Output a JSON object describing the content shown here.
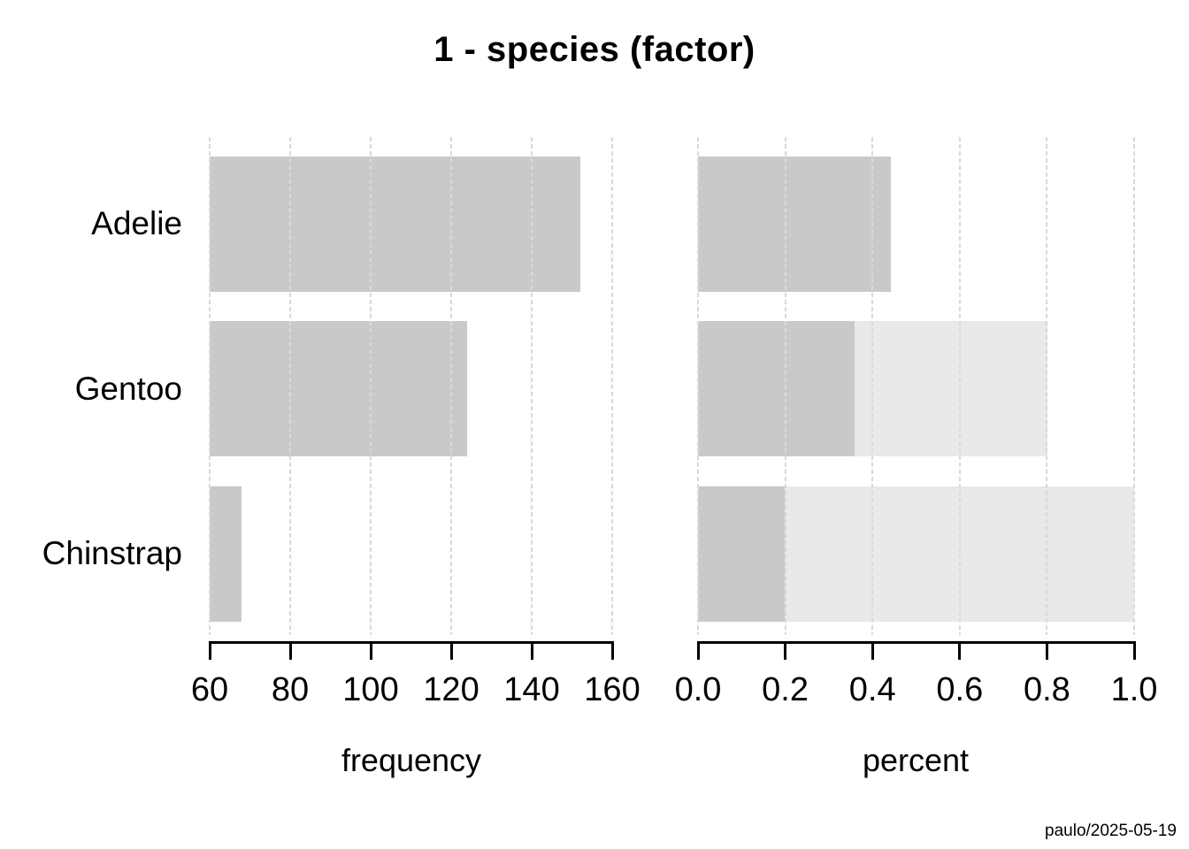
{
  "title": "1 - species (factor)",
  "footer": "paulo/2025-05-19",
  "colors": {
    "bar_dark": "#c9c9c9",
    "bar_light": "#e9e9e9",
    "grid": "#d9d9d9",
    "axis": "#000000",
    "text": "#000000",
    "background": "#ffffff"
  },
  "chart_data": [
    {
      "type": "bar",
      "orientation": "horizontal",
      "panel": "frequency",
      "xlabel": "frequency",
      "categories": [
        "Adelie",
        "Gentoo",
        "Chinstrap"
      ],
      "values": [
        152,
        124,
        68
      ],
      "xlim": [
        60,
        160
      ],
      "xticks": [
        60,
        80,
        100,
        120,
        140,
        160
      ],
      "xtick_labels": [
        "60",
        "80",
        "100",
        "120",
        "140",
        "160"
      ],
      "grid": "dashed-vertical",
      "legend": "none"
    },
    {
      "type": "bar",
      "orientation": "horizontal",
      "panel": "percent",
      "xlabel": "percent",
      "categories": [
        "Adelie",
        "Gentoo",
        "Chinstrap"
      ],
      "values": [
        0.442,
        0.36,
        0.198
      ],
      "cumulative": [
        0.442,
        0.802,
        1.0
      ],
      "xlim": [
        0,
        1
      ],
      "xticks": [
        0,
        0.2,
        0.4,
        0.6,
        0.8,
        1.0
      ],
      "xtick_labels": [
        "0.0",
        "0.2",
        "0.4",
        "0.6",
        "0.8",
        "1.0"
      ],
      "grid": "dashed-vertical",
      "legend": "none"
    }
  ]
}
